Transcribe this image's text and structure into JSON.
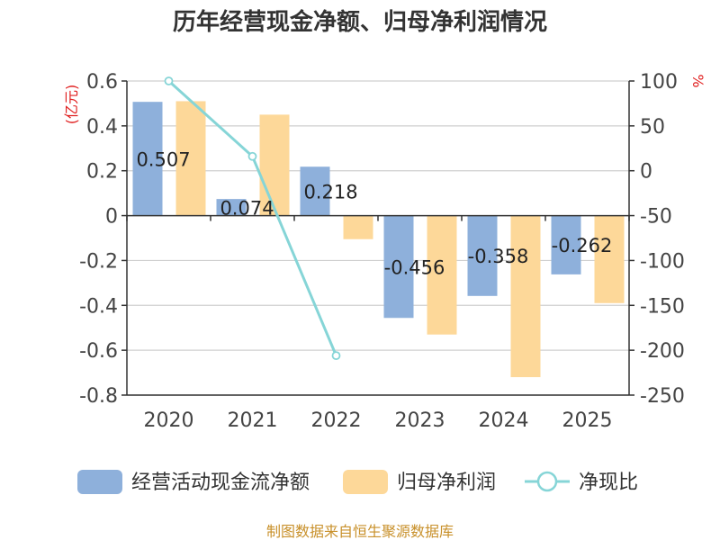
{
  "chart_data": {
    "type": "bar",
    "title": "历年经营现金净额、归母净利润情况",
    "categories": [
      "2020",
      "2021",
      "2022",
      "2023",
      "2024",
      "2025"
    ],
    "series": [
      {
        "name": "经营活动现金流净额",
        "axis": "left",
        "type": "bar",
        "color": "#8eb0db",
        "values": [
          0.507,
          0.074,
          0.218,
          -0.456,
          -0.358,
          -0.262
        ]
      },
      {
        "name": "归母净利润",
        "axis": "left",
        "type": "bar",
        "color": "#fdd899",
        "values": [
          0.51,
          0.45,
          -0.105,
          -0.53,
          -0.72,
          -0.39
        ]
      },
      {
        "name": "净现比",
        "axis": "right",
        "type": "line",
        "color": "#86d5d7",
        "values": [
          100,
          16,
          -206,
          null,
          null,
          null
        ]
      }
    ],
    "data_labels": [
      "0.507",
      "0.074",
      "0.218",
      "-0.456",
      "-0.358",
      "-0.262"
    ],
    "y_left": {
      "unit": "(亿元)",
      "min": -0.8,
      "max": 0.6,
      "step": 0.2,
      "ticks": [
        "0.6",
        "0.4",
        "0.2",
        "0",
        "-0.2",
        "-0.4",
        "-0.6",
        "-0.8"
      ]
    },
    "y_right": {
      "unit": "%",
      "min": -250,
      "max": 100,
      "step": 50,
      "ticks": [
        "100",
        "50",
        "0",
        "-50",
        "-100",
        "-150",
        "-200",
        "-250"
      ]
    },
    "legend": {
      "position": "bottom",
      "items": [
        "经营活动现金流净额",
        "归母净利润",
        "净现比"
      ]
    },
    "grid": true
  },
  "source": "制图数据来自恒生聚源数据库"
}
